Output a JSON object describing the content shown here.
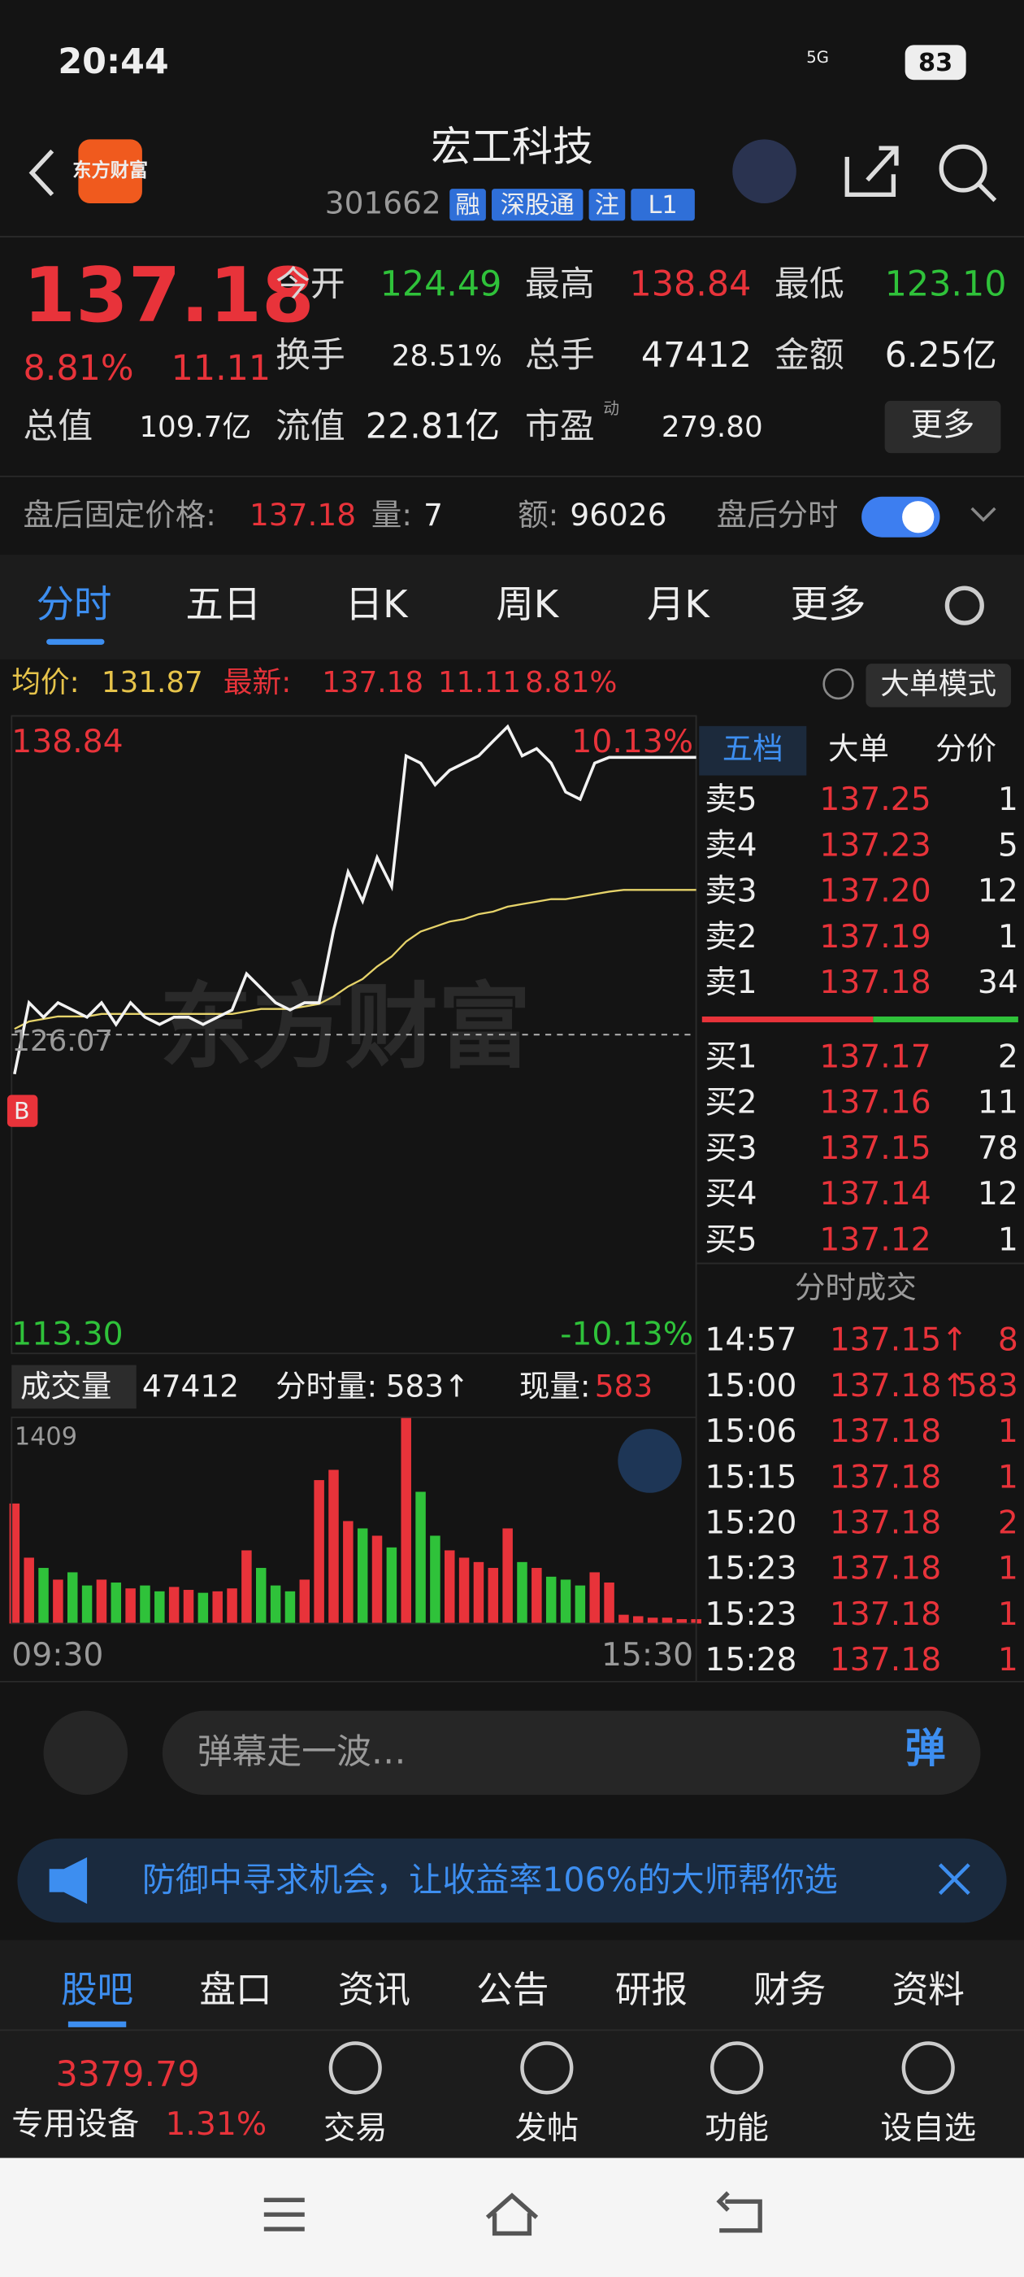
{
  "status": {
    "time": "20:44",
    "network": "5G",
    "battery": "83"
  },
  "header": {
    "logo": "东方财富",
    "title": "宏工科技",
    "code": "301662",
    "tags": [
      "融",
      "深股通",
      "注",
      "L1"
    ]
  },
  "quote": {
    "price": "137.18",
    "change_pct": "8.81%",
    "change": "11.11",
    "open_label": "今开",
    "open": "124.49",
    "high_label": "最高",
    "high": "138.84",
    "low_label": "最低",
    "low": "123.10",
    "turnover_label": "换手",
    "turnover": "28.51%",
    "volume_label": "总手",
    "volume": "47412",
    "amount_label": "金额",
    "amount": "6.25亿",
    "mcap_label": "总值",
    "mcap": "109.7亿",
    "float_label": "流值",
    "float": "22.81亿",
    "pe_label": "市盈",
    "pe_sup": "动",
    "pe": "279.80",
    "more": "更多"
  },
  "after_hours": {
    "price_label": "盘后固定价格:",
    "price": "137.18",
    "vol_label": "量:",
    "vol": "7",
    "amt_label": "额:",
    "amt": "96026",
    "toggle_label": "盘后分时"
  },
  "tabs": [
    "分时",
    "五日",
    "日K",
    "周K",
    "月K",
    "更多"
  ],
  "info": {
    "avg_label": "均价:",
    "avg": "131.87",
    "last_label": "最新:",
    "last": "137.18",
    "change": "11.11",
    "change_pct": "8.81%",
    "mode": "大单模式"
  },
  "chart_data": {
    "type": "line",
    "watermark": "东方财富",
    "top_label": "138.84",
    "top_pct": "10.13%",
    "mid_label": "126.07",
    "bottom_label": "113.30",
    "bottom_pct": "-10.13%",
    "ylim": [
      113.3,
      138.84
    ],
    "prev_close": 126.07,
    "buy_marker": "B",
    "price": [
      124.49,
      127.35,
      126.77,
      127.35,
      127.06,
      126.77,
      127.35,
      126.48,
      127.35,
      126.77,
      126.48,
      126.77,
      126.77,
      126.48,
      126.77,
      127.06,
      128.51,
      127.93,
      127.35,
      127.06,
      127.35,
      127.35,
      130.26,
      132.59,
      131.42,
      133.17,
      132.01,
      137.24,
      136.95,
      136.08,
      136.66,
      136.95,
      137.24,
      137.83,
      138.41,
      137.24,
      137.53,
      136.95,
      135.79,
      135.5,
      136.95,
      137.18,
      137.18,
      137.18,
      137.18,
      137.18,
      137.18,
      137.18
    ],
    "avg": [
      126.3,
      126.6,
      126.7,
      126.8,
      126.8,
      126.8,
      126.9,
      126.9,
      126.9,
      126.9,
      126.9,
      126.9,
      126.9,
      126.9,
      126.9,
      126.9,
      127.0,
      127.1,
      127.1,
      127.1,
      127.2,
      127.3,
      127.6,
      128.0,
      128.3,
      128.8,
      129.2,
      129.8,
      130.2,
      130.4,
      130.6,
      130.7,
      130.9,
      131.0,
      131.2,
      131.3,
      131.4,
      131.5,
      131.5,
      131.6,
      131.7,
      131.8,
      131.87,
      131.87,
      131.87,
      131.87,
      131.87,
      131.87
    ],
    "volume_label": "成交量",
    "volume_total": "47412",
    "tick_vol_label": "分时量:",
    "tick_vol": "583↑",
    "now_vol_label": "现量:",
    "now_vol": "583",
    "volume_max_label": "1409",
    "volume_max": 1409,
    "volume": [
      820,
      450,
      380,
      300,
      350,
      260,
      300,
      280,
      240,
      260,
      220,
      250,
      230,
      210,
      220,
      240,
      500,
      380,
      260,
      220,
      300,
      980,
      1050,
      700,
      650,
      600,
      520,
      1409,
      900,
      600,
      500,
      450,
      420,
      380,
      650,
      420,
      380,
      320,
      300,
      260,
      350,
      280,
      60,
      50,
      40,
      40,
      30,
      30
    ],
    "x_start": "09:30",
    "x_end": "15:30"
  },
  "order_book": {
    "tabs": [
      "五档",
      "大单",
      "分价"
    ],
    "asks": [
      {
        "label": "卖5",
        "price": "137.25",
        "vol": "1"
      },
      {
        "label": "卖4",
        "price": "137.23",
        "vol": "5"
      },
      {
        "label": "卖3",
        "price": "137.20",
        "vol": "12"
      },
      {
        "label": "卖2",
        "price": "137.19",
        "vol": "1"
      },
      {
        "label": "卖1",
        "price": "137.18",
        "vol": "34"
      }
    ],
    "bids": [
      {
        "label": "买1",
        "price": "137.17",
        "vol": "2"
      },
      {
        "label": "买2",
        "price": "137.16",
        "vol": "11"
      },
      {
        "label": "买3",
        "price": "137.15",
        "vol": "78"
      },
      {
        "label": "买4",
        "price": "137.14",
        "vol": "12"
      },
      {
        "label": "买5",
        "price": "137.12",
        "vol": "1"
      }
    ]
  },
  "trades": {
    "title": "分时成交",
    "rows": [
      {
        "time": "14:57",
        "price": "137.15↑",
        "vol": "8"
      },
      {
        "time": "15:00",
        "price": "137.18↑",
        "vol": "583"
      },
      {
        "time": "15:06",
        "price": "137.18",
        "vol": "1"
      },
      {
        "time": "15:15",
        "price": "137.18",
        "vol": "1"
      },
      {
        "time": "15:20",
        "price": "137.18",
        "vol": "2"
      },
      {
        "time": "15:23",
        "price": "137.18",
        "vol": "1"
      },
      {
        "time": "15:23",
        "price": "137.18",
        "vol": "1"
      },
      {
        "time": "15:28",
        "price": "137.18",
        "vol": "1"
      }
    ]
  },
  "comment": {
    "placeholder": "弹幕走一波…",
    "button": "弹"
  },
  "banner": {
    "text": "防御中寻求机会，让收益率106%的大师帮你选"
  },
  "bottom_tabs": [
    "股吧",
    "盘口",
    "资讯",
    "公告",
    "研报",
    "财务",
    "资料"
  ],
  "nav": {
    "index": "3379.79",
    "sector": "专用设备",
    "sector_pct": "1.31%",
    "items": [
      "交易",
      "发帖",
      "功能",
      "设自选"
    ]
  }
}
